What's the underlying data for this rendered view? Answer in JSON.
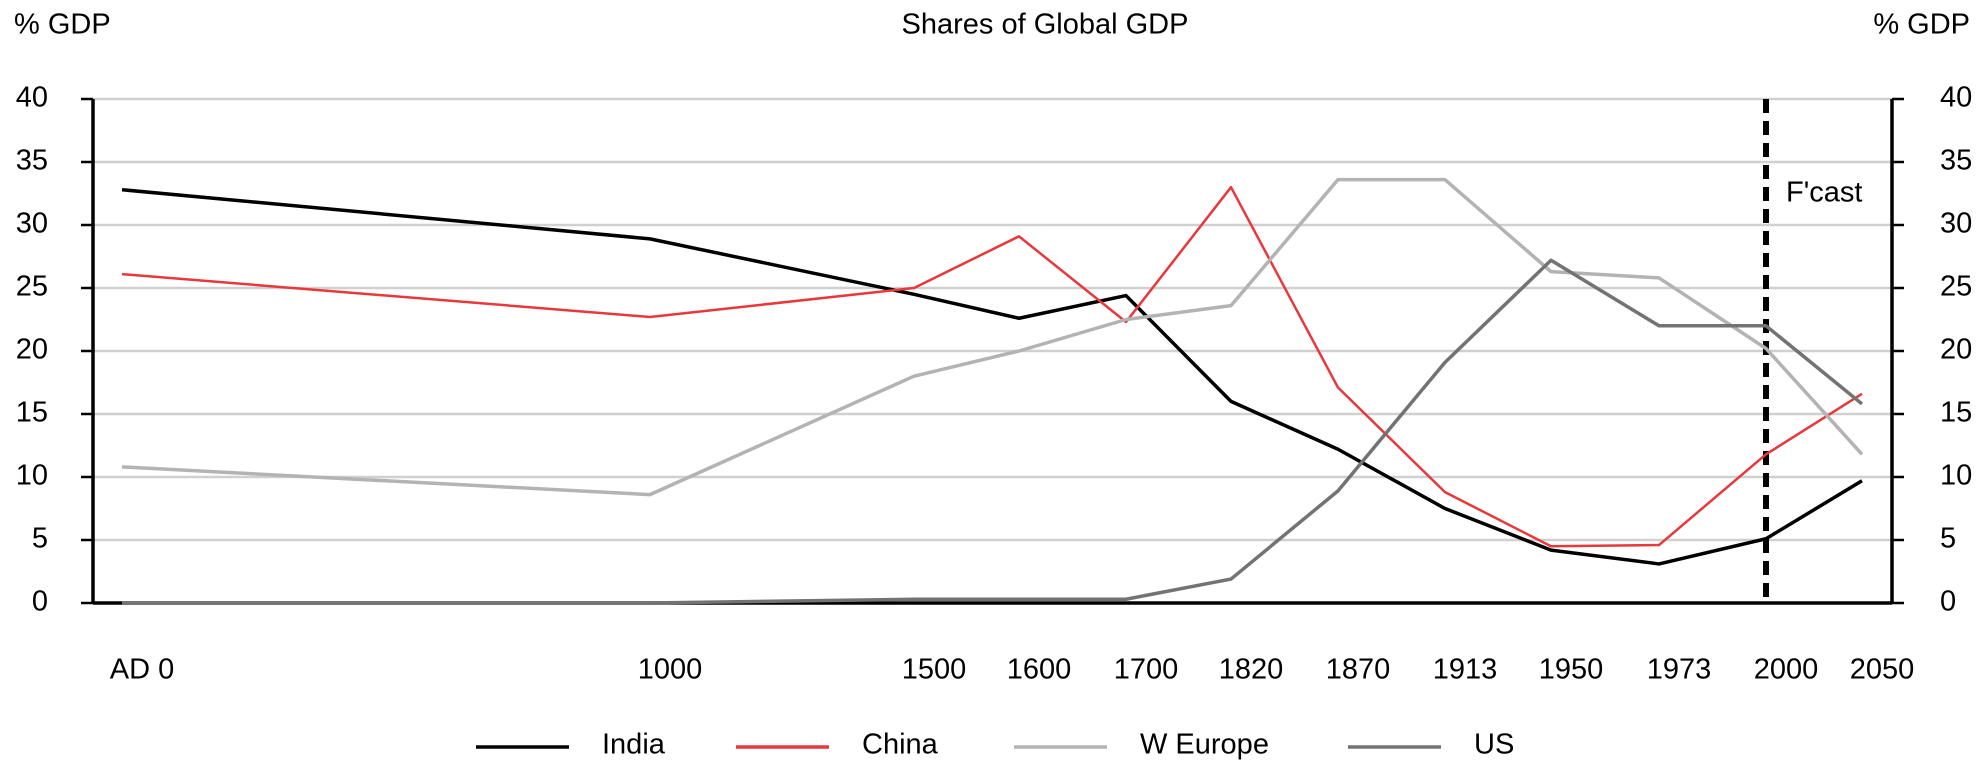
{
  "chart_data": {
    "type": "line",
    "title": "Shares of Global GDP",
    "y_label": "% GDP",
    "y2_label": "% GDP",
    "categories": [
      "AD 0",
      "1000",
      "1500",
      "1600",
      "1700",
      "1820",
      "1870",
      "1913",
      "1950",
      "1973",
      "2000",
      "2050"
    ],
    "series": [
      {
        "name": "India",
        "color": "#000000",
        "values": [
          32.8,
          28.9,
          24.5,
          22.6,
          24.4,
          16.0,
          12.2,
          7.5,
          4.2,
          3.1,
          5.1,
          9.7
        ]
      },
      {
        "name": "China",
        "color": "#e8383b",
        "values": [
          26.1,
          22.7,
          25.0,
          29.1,
          22.3,
          33.0,
          17.1,
          8.8,
          4.5,
          4.6,
          11.8,
          16.6
        ]
      },
      {
        "name": "W Europe",
        "color": "#b3b3b3",
        "values": [
          10.8,
          8.6,
          18.0,
          20.0,
          22.5,
          23.6,
          33.6,
          33.6,
          26.3,
          25.8,
          20.2,
          11.8
        ]
      },
      {
        "name": "US",
        "color": "#737373",
        "values": [
          0.0,
          0.0,
          0.3,
          0.3,
          0.3,
          1.9,
          8.9,
          19.1,
          27.2,
          22.0,
          22.0,
          15.8
        ]
      }
    ],
    "annotations": [
      {
        "text": "F'cast",
        "x": "2000"
      }
    ],
    "ylim": [
      0,
      40
    ],
    "yticks": [
      0,
      5,
      10,
      15,
      20,
      25,
      30,
      35,
      40
    ],
    "y2lim": [
      0,
      40
    ],
    "y2ticks": [
      0,
      5,
      10,
      15,
      20,
      25,
      30,
      35,
      40
    ],
    "grid": true,
    "legend": "bottom"
  }
}
